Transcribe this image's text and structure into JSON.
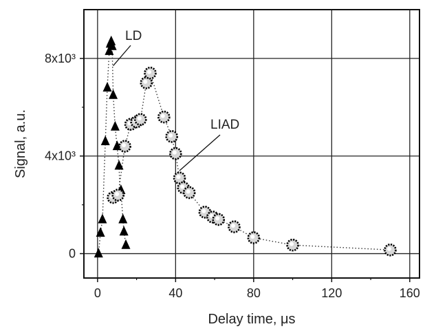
{
  "chart_data": {
    "type": "scatter",
    "title": "",
    "xlabel": "Delay time, μs",
    "ylabel": "Signal, a.u.",
    "xlim": [
      -7,
      165
    ],
    "ylim": [
      -1000,
      10000
    ],
    "xticks": [
      {
        "value": 0,
        "label": "0"
      },
      {
        "value": 40,
        "label": "40"
      },
      {
        "value": 80,
        "label": "80"
      },
      {
        "value": 120,
        "label": "120"
      },
      {
        "value": 160,
        "label": "160"
      }
    ],
    "yticks": [
      {
        "value": 0,
        "label": "0"
      },
      {
        "value": 4000,
        "label": "4x10³"
      },
      {
        "value": 8000,
        "label": "8x10³"
      }
    ],
    "grid": true,
    "series": [
      {
        "name": "LD",
        "marker": "triangle",
        "color": "#000000",
        "points": [
          [
            0.5,
            0
          ],
          [
            1.5,
            850
          ],
          [
            2.5,
            1400
          ],
          [
            4,
            4600
          ],
          [
            5,
            6800
          ],
          [
            6,
            8300
          ],
          [
            6.5,
            8600
          ],
          [
            7,
            8700
          ],
          [
            7.5,
            8500
          ],
          [
            8,
            6500
          ],
          [
            9,
            5200
          ],
          [
            10,
            4400
          ],
          [
            11,
            3600
          ],
          [
            11.5,
            2500
          ],
          [
            12,
            2600
          ],
          [
            13,
            1400
          ],
          [
            13.5,
            900
          ],
          [
            14.5,
            350
          ]
        ]
      },
      {
        "name": "LIAD",
        "marker": "circle",
        "color": "#000000",
        "points": [
          [
            8,
            2300
          ],
          [
            10.5,
            2400
          ],
          [
            14,
            4400
          ],
          [
            17,
            5300
          ],
          [
            20,
            5400
          ],
          [
            22,
            5500
          ],
          [
            25,
            7000
          ],
          [
            27,
            7400
          ],
          [
            34,
            5600
          ],
          [
            38,
            4800
          ],
          [
            40,
            4100
          ],
          [
            42,
            3100
          ],
          [
            44,
            2700
          ],
          [
            47,
            2500
          ],
          [
            55,
            1700
          ],
          [
            59,
            1500
          ],
          [
            62,
            1400
          ],
          [
            70,
            1100
          ],
          [
            80,
            650
          ],
          [
            100,
            350
          ],
          [
            150,
            150
          ]
        ]
      }
    ],
    "annotations": [
      {
        "text": "LD",
        "target_series": "LD",
        "target_point": [
          8,
          7700
        ]
      },
      {
        "text": "LIAD",
        "target_series": "LIAD",
        "target_point": [
          42,
          3400
        ]
      }
    ]
  }
}
